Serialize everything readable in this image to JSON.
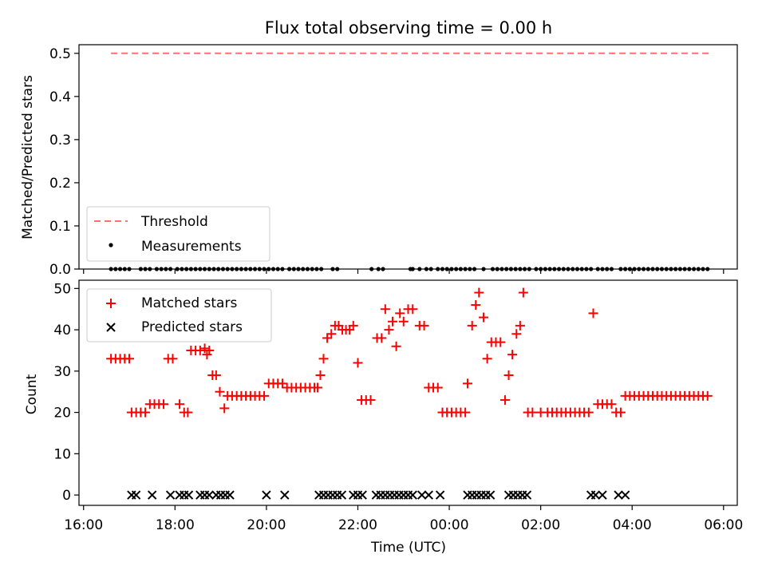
{
  "chart_data": [
    {
      "type": "line",
      "title": "Flux total observing time = 0.00 h",
      "xlabel": "",
      "ylabel": "Matched/Predicted stars",
      "xlim": [
        15.9,
        30.3
      ],
      "ylim": [
        0.0,
        0.52
      ],
      "yticks": [
        0.0,
        0.1,
        0.2,
        0.3,
        0.4,
        0.5
      ],
      "ytick_labels": [
        "0.0",
        "0.1",
        "0.2",
        "0.3",
        "0.4",
        "0.5"
      ],
      "xticks": [
        16,
        18,
        20,
        22,
        24,
        26,
        28,
        30
      ],
      "grid": false,
      "legend_position": "lower-left",
      "series": [
        {
          "name": "Threshold",
          "style": "dashed",
          "color": "#ff6f6f",
          "x": [
            16.6,
            29.7
          ],
          "y": [
            0.5,
            0.5
          ]
        },
        {
          "name": "Measurements",
          "style": "points",
          "color": "#000000",
          "x": [
            16.6,
            16.7,
            16.8,
            16.9,
            17.0,
            17.25,
            17.35,
            17.45,
            17.6,
            17.7,
            17.8,
            17.9,
            18.05,
            18.15,
            18.25,
            18.35,
            18.45,
            18.55,
            18.65,
            18.75,
            18.85,
            18.95,
            19.05,
            19.15,
            19.25,
            19.35,
            19.45,
            19.55,
            19.65,
            19.75,
            19.85,
            19.95,
            20.05,
            20.15,
            20.25,
            20.35,
            20.5,
            20.6,
            20.7,
            20.8,
            20.9,
            21.0,
            21.1,
            21.2,
            21.45,
            21.55,
            22.3,
            22.45,
            22.55,
            23.15,
            23.2,
            23.35,
            23.5,
            23.6,
            23.75,
            23.85,
            23.95,
            24.05,
            24.15,
            24.25,
            24.35,
            24.45,
            24.55,
            24.75,
            24.95,
            25.05,
            25.15,
            25.25,
            25.35,
            25.45,
            25.55,
            25.65,
            25.75,
            25.9,
            26.0,
            26.1,
            26.2,
            26.3,
            26.4,
            26.5,
            26.6,
            26.7,
            26.8,
            26.9,
            27.0,
            27.1,
            27.25,
            27.35,
            27.45,
            27.55,
            27.75,
            27.85,
            27.95,
            28.05,
            28.15,
            28.25,
            28.35,
            28.45,
            28.55,
            28.65,
            28.75,
            28.85,
            28.95,
            29.05,
            29.15,
            29.25,
            29.35,
            29.45,
            29.55,
            29.65
          ],
          "y": [
            0,
            0,
            0,
            0,
            0,
            0,
            0,
            0,
            0,
            0,
            0,
            0,
            0,
            0,
            0,
            0,
            0,
            0,
            0,
            0,
            0,
            0,
            0,
            0,
            0,
            0,
            0,
            0,
            0,
            0,
            0,
            0,
            0,
            0,
            0,
            0,
            0,
            0,
            0,
            0,
            0,
            0,
            0,
            0,
            0,
            0,
            0,
            0,
            0,
            0,
            0,
            0,
            0,
            0,
            0,
            0,
            0,
            0,
            0,
            0,
            0,
            0,
            0,
            0,
            0,
            0,
            0,
            0,
            0,
            0,
            0,
            0,
            0,
            0,
            0,
            0,
            0,
            0,
            0,
            0,
            0,
            0,
            0,
            0,
            0,
            0,
            0,
            0,
            0,
            0,
            0,
            0,
            0,
            0,
            0,
            0,
            0,
            0,
            0,
            0,
            0,
            0,
            0,
            0,
            0,
            0,
            0,
            0,
            0,
            0
          ]
        }
      ],
      "legend": [
        "Threshold",
        "Measurements"
      ]
    },
    {
      "type": "scatter",
      "title": "",
      "xlabel": "Time (UTC)",
      "ylabel": "Count",
      "xlim": [
        15.9,
        30.3
      ],
      "ylim": [
        -2.5,
        52
      ],
      "yticks": [
        0,
        10,
        20,
        30,
        40,
        50
      ],
      "ytick_labels": [
        "0",
        "10",
        "20",
        "30",
        "40",
        "50"
      ],
      "xticks": [
        16,
        18,
        20,
        22,
        24,
        26,
        28,
        30
      ],
      "xtick_labels": [
        "16:00",
        "18:00",
        "20:00",
        "22:00",
        "00:00",
        "02:00",
        "04:00",
        "06:00"
      ],
      "grid": false,
      "legend_position": "upper-left",
      "series": [
        {
          "name": "Matched stars",
          "marker": "plus",
          "color": "#ff0000",
          "points": [
            [
              16.6,
              33
            ],
            [
              16.7,
              33
            ],
            [
              16.8,
              33
            ],
            [
              16.9,
              33
            ],
            [
              17.0,
              33
            ],
            [
              17.05,
              20
            ],
            [
              17.15,
              20
            ],
            [
              17.25,
              20
            ],
            [
              17.35,
              20
            ],
            [
              17.45,
              22
            ],
            [
              17.55,
              22
            ],
            [
              17.65,
              22
            ],
            [
              17.75,
              22
            ],
            [
              17.85,
              33
            ],
            [
              17.95,
              33
            ],
            [
              18.1,
              22
            ],
            [
              18.2,
              20
            ],
            [
              18.28,
              20
            ],
            [
              18.35,
              35
            ],
            [
              18.45,
              35
            ],
            [
              18.55,
              35
            ],
            [
              18.65,
              35.5
            ],
            [
              18.7,
              34
            ],
            [
              18.75,
              35
            ],
            [
              18.82,
              29
            ],
            [
              18.9,
              29
            ],
            [
              18.98,
              25
            ],
            [
              19.08,
              21
            ],
            [
              19.15,
              24
            ],
            [
              19.25,
              24
            ],
            [
              19.35,
              24
            ],
            [
              19.45,
              24
            ],
            [
              19.55,
              24
            ],
            [
              19.65,
              24
            ],
            [
              19.75,
              24
            ],
            [
              19.85,
              24
            ],
            [
              19.95,
              24
            ],
            [
              20.05,
              27
            ],
            [
              20.15,
              27
            ],
            [
              20.25,
              27
            ],
            [
              20.35,
              27
            ],
            [
              20.45,
              26
            ],
            [
              20.55,
              26
            ],
            [
              20.65,
              26
            ],
            [
              20.75,
              26
            ],
            [
              20.85,
              26
            ],
            [
              20.95,
              26
            ],
            [
              21.05,
              26
            ],
            [
              21.12,
              26
            ],
            [
              21.18,
              29
            ],
            [
              21.25,
              33
            ],
            [
              21.33,
              38
            ],
            [
              21.42,
              39
            ],
            [
              21.5,
              41
            ],
            [
              21.58,
              41
            ],
            [
              21.66,
              40
            ],
            [
              21.74,
              40
            ],
            [
              21.82,
              40
            ],
            [
              21.9,
              41
            ],
            [
              22.0,
              32
            ],
            [
              22.08,
              23
            ],
            [
              22.18,
              23
            ],
            [
              22.28,
              23
            ],
            [
              22.42,
              38
            ],
            [
              22.52,
              38
            ],
            [
              22.6,
              45
            ],
            [
              22.68,
              40
            ],
            [
              22.76,
              42
            ],
            [
              22.84,
              36
            ],
            [
              22.92,
              44
            ],
            [
              23.0,
              42
            ],
            [
              23.1,
              45
            ],
            [
              23.2,
              45
            ],
            [
              23.35,
              41
            ],
            [
              23.45,
              41
            ],
            [
              23.55,
              26
            ],
            [
              23.65,
              26
            ],
            [
              23.75,
              26
            ],
            [
              23.85,
              20
            ],
            [
              23.95,
              20
            ],
            [
              24.05,
              20
            ],
            [
              24.15,
              20
            ],
            [
              24.25,
              20
            ],
            [
              24.35,
              20
            ],
            [
              24.4,
              27
            ],
            [
              24.5,
              41
            ],
            [
              24.58,
              46
            ],
            [
              24.65,
              49
            ],
            [
              24.75,
              43
            ],
            [
              24.83,
              33
            ],
            [
              24.92,
              37
            ],
            [
              25.02,
              37
            ],
            [
              25.12,
              37
            ],
            [
              25.22,
              23
            ],
            [
              25.3,
              29
            ],
            [
              25.38,
              34
            ],
            [
              25.47,
              39
            ],
            [
              25.55,
              41
            ],
            [
              25.62,
              49
            ],
            [
              25.72,
              20
            ],
            [
              25.82,
              20
            ],
            [
              26.0,
              20
            ],
            [
              26.15,
              20
            ],
            [
              26.25,
              20
            ],
            [
              26.35,
              20
            ],
            [
              26.45,
              20
            ],
            [
              26.55,
              20
            ],
            [
              26.65,
              20
            ],
            [
              26.75,
              20
            ],
            [
              26.85,
              20
            ],
            [
              26.95,
              20
            ],
            [
              27.05,
              20
            ],
            [
              27.15,
              44
            ],
            [
              27.25,
              22
            ],
            [
              27.35,
              22
            ],
            [
              27.45,
              22
            ],
            [
              27.55,
              22
            ],
            [
              27.65,
              20
            ],
            [
              27.75,
              20
            ],
            [
              27.85,
              24
            ],
            [
              27.95,
              24
            ],
            [
              28.05,
              24
            ],
            [
              28.15,
              24
            ],
            [
              28.25,
              24
            ],
            [
              28.35,
              24
            ],
            [
              28.45,
              24
            ],
            [
              28.55,
              24
            ],
            [
              28.65,
              24
            ],
            [
              28.75,
              24
            ],
            [
              28.85,
              24
            ],
            [
              28.95,
              24
            ],
            [
              29.05,
              24
            ],
            [
              29.15,
              24
            ],
            [
              29.25,
              24
            ],
            [
              29.35,
              24
            ],
            [
              29.45,
              24
            ],
            [
              29.55,
              24
            ],
            [
              29.65,
              24
            ]
          ]
        },
        {
          "name": "Predicted stars",
          "marker": "x",
          "color": "#000000",
          "points": [
            [
              17.05,
              0
            ],
            [
              17.15,
              0
            ],
            [
              17.5,
              0
            ],
            [
              17.9,
              0
            ],
            [
              18.1,
              0
            ],
            [
              18.2,
              0
            ],
            [
              18.3,
              0
            ],
            [
              18.55,
              0
            ],
            [
              18.65,
              0
            ],
            [
              18.75,
              0
            ],
            [
              18.9,
              0
            ],
            [
              19.0,
              0
            ],
            [
              19.1,
              0
            ],
            [
              19.2,
              0
            ],
            [
              20.0,
              0
            ],
            [
              20.4,
              0
            ],
            [
              21.15,
              0
            ],
            [
              21.25,
              0
            ],
            [
              21.35,
              0
            ],
            [
              21.45,
              0
            ],
            [
              21.55,
              0
            ],
            [
              21.65,
              0
            ],
            [
              21.9,
              0
            ],
            [
              22.0,
              0
            ],
            [
              22.1,
              0
            ],
            [
              22.4,
              0
            ],
            [
              22.5,
              0
            ],
            [
              22.6,
              0
            ],
            [
              22.7,
              0
            ],
            [
              22.8,
              0
            ],
            [
              22.9,
              0
            ],
            [
              23.0,
              0
            ],
            [
              23.1,
              0
            ],
            [
              23.2,
              0
            ],
            [
              23.4,
              0
            ],
            [
              23.55,
              0
            ],
            [
              23.8,
              0
            ],
            [
              24.4,
              0
            ],
            [
              24.5,
              0
            ],
            [
              24.6,
              0
            ],
            [
              24.7,
              0
            ],
            [
              24.8,
              0
            ],
            [
              24.9,
              0
            ],
            [
              25.3,
              0
            ],
            [
              25.4,
              0
            ],
            [
              25.5,
              0
            ],
            [
              25.6,
              0
            ],
            [
              25.7,
              0
            ],
            [
              27.1,
              0
            ],
            [
              27.2,
              0
            ],
            [
              27.35,
              0
            ],
            [
              27.7,
              0
            ],
            [
              27.85,
              0
            ]
          ]
        }
      ],
      "legend": [
        "Matched stars",
        "Predicted stars"
      ]
    }
  ]
}
